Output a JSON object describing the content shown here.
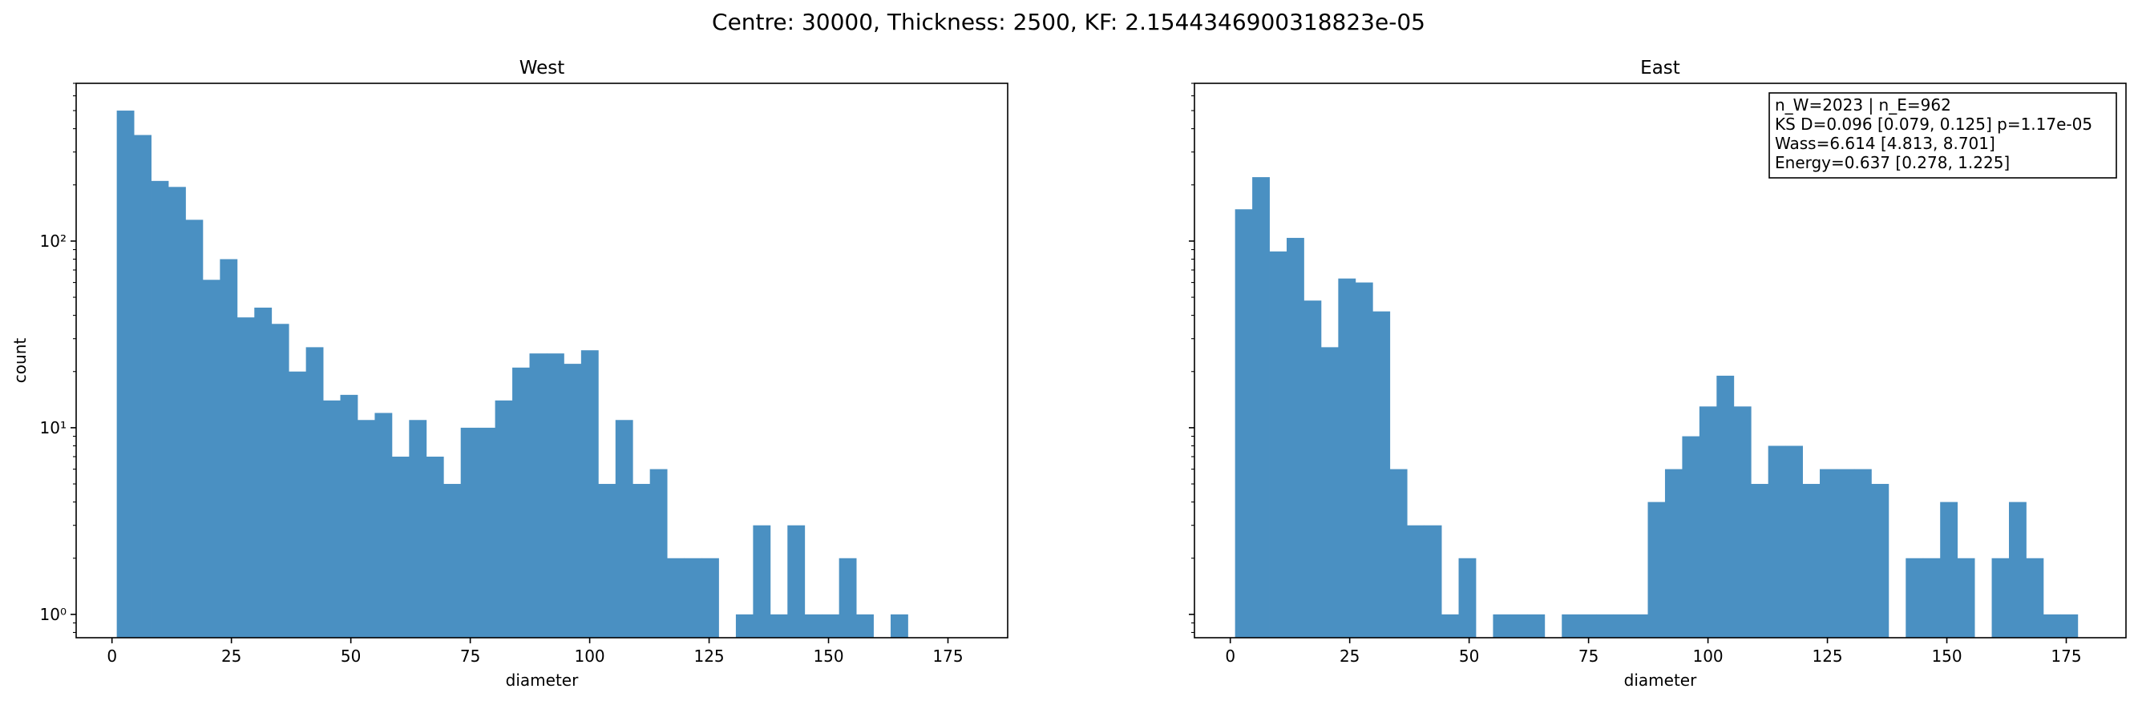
{
  "figure": {
    "suptitle": "Centre: 30000, Thickness: 2500, KF: 2.1544346900318823e-05"
  },
  "colors": {
    "bar": "#4a90c2",
    "axes": "#000000",
    "background": "#ffffff"
  },
  "chart_data": [
    {
      "type": "bar",
      "title": "West",
      "xlabel": "diameter",
      "ylabel": "count",
      "yscale": "log",
      "xlim": [
        -7.5,
        187.5
      ],
      "ylim": [
        0.75,
        700
      ],
      "xticks": [
        0,
        25,
        50,
        75,
        100,
        125,
        150,
        175
      ],
      "xtick_labels": [
        "0",
        "25",
        "50",
        "75",
        "100",
        "125",
        "150",
        "175"
      ],
      "yticks": [
        1,
        10,
        100
      ],
      "ytick_labels": [
        "10⁰",
        "10¹",
        "10²"
      ],
      "grid": false,
      "bin_edges": [
        1.0,
        4.6,
        8.2,
        11.8,
        15.4,
        19.0,
        22.6,
        26.2,
        29.8,
        33.4,
        37.0,
        40.6,
        44.2,
        47.8,
        51.4,
        55.0,
        58.6,
        62.2,
        65.8,
        69.4,
        73.0,
        76.6,
        80.2,
        83.8,
        87.4,
        91.0,
        94.6,
        98.2,
        101.8,
        105.4,
        109.0,
        112.6,
        116.2,
        119.8,
        123.4,
        127.0,
        130.6,
        134.2,
        137.8,
        141.4,
        145.0,
        148.6,
        152.2,
        155.8,
        159.4,
        163.0,
        166.6,
        170.2,
        173.8,
        177.4,
        181.0
      ],
      "values": [
        500,
        370,
        210,
        195,
        130,
        62,
        80,
        39,
        44,
        36,
        20,
        27,
        14,
        15,
        11,
        12,
        7,
        11,
        7,
        5,
        10,
        10,
        14,
        21,
        25,
        25,
        22,
        26,
        5,
        11,
        5,
        6,
        2,
        2,
        2,
        0,
        1,
        3,
        1,
        3,
        1,
        1,
        2,
        1,
        0,
        1,
        0,
        0,
        0,
        0
      ]
    },
    {
      "type": "bar",
      "title": "East",
      "xlabel": "diameter",
      "ylabel": "",
      "yscale": "log",
      "xlim": [
        -7.5,
        187.5
      ],
      "ylim": [
        0.75,
        700
      ],
      "xticks": [
        0,
        25,
        50,
        75,
        100,
        125,
        150,
        175
      ],
      "xtick_labels": [
        "0",
        "25",
        "50",
        "75",
        "100",
        "125",
        "150",
        "175"
      ],
      "yticks": [
        1,
        10,
        100
      ],
      "ytick_labels": [
        "",
        "",
        ""
      ],
      "grid": false,
      "bin_edges": [
        1.0,
        4.6,
        8.2,
        11.8,
        15.4,
        19.0,
        22.6,
        26.2,
        29.8,
        33.4,
        37.0,
        40.6,
        44.2,
        47.8,
        51.4,
        55.0,
        58.6,
        62.2,
        65.8,
        69.4,
        73.0,
        76.6,
        80.2,
        83.8,
        87.4,
        91.0,
        94.6,
        98.2,
        101.8,
        105.4,
        109.0,
        112.6,
        116.2,
        119.8,
        123.4,
        127.0,
        130.6,
        134.2,
        137.8,
        141.4,
        145.0,
        148.6,
        152.2,
        155.8,
        159.4,
        163.0,
        166.6,
        170.2,
        173.8,
        177.4,
        181.0
      ],
      "values": [
        148,
        220,
        88,
        104,
        48,
        27,
        63,
        60,
        42,
        6,
        3,
        3,
        1,
        2,
        0,
        1,
        1,
        1,
        0,
        1,
        1,
        1,
        1,
        1,
        4,
        6,
        9,
        13,
        19,
        13,
        5,
        8,
        8,
        5,
        6,
        6,
        6,
        5,
        0,
        2,
        2,
        4,
        2,
        0,
        2,
        4,
        2,
        1,
        1,
        0
      ],
      "annotation_lines": [
        "n_W=2023 | n_E=962",
        "KS D=0.096 [0.079, 0.125]  p=1.17e-05",
        "Wass=6.614 [4.813, 8.701]",
        "Energy=0.637 [0.278, 1.225]"
      ]
    }
  ]
}
